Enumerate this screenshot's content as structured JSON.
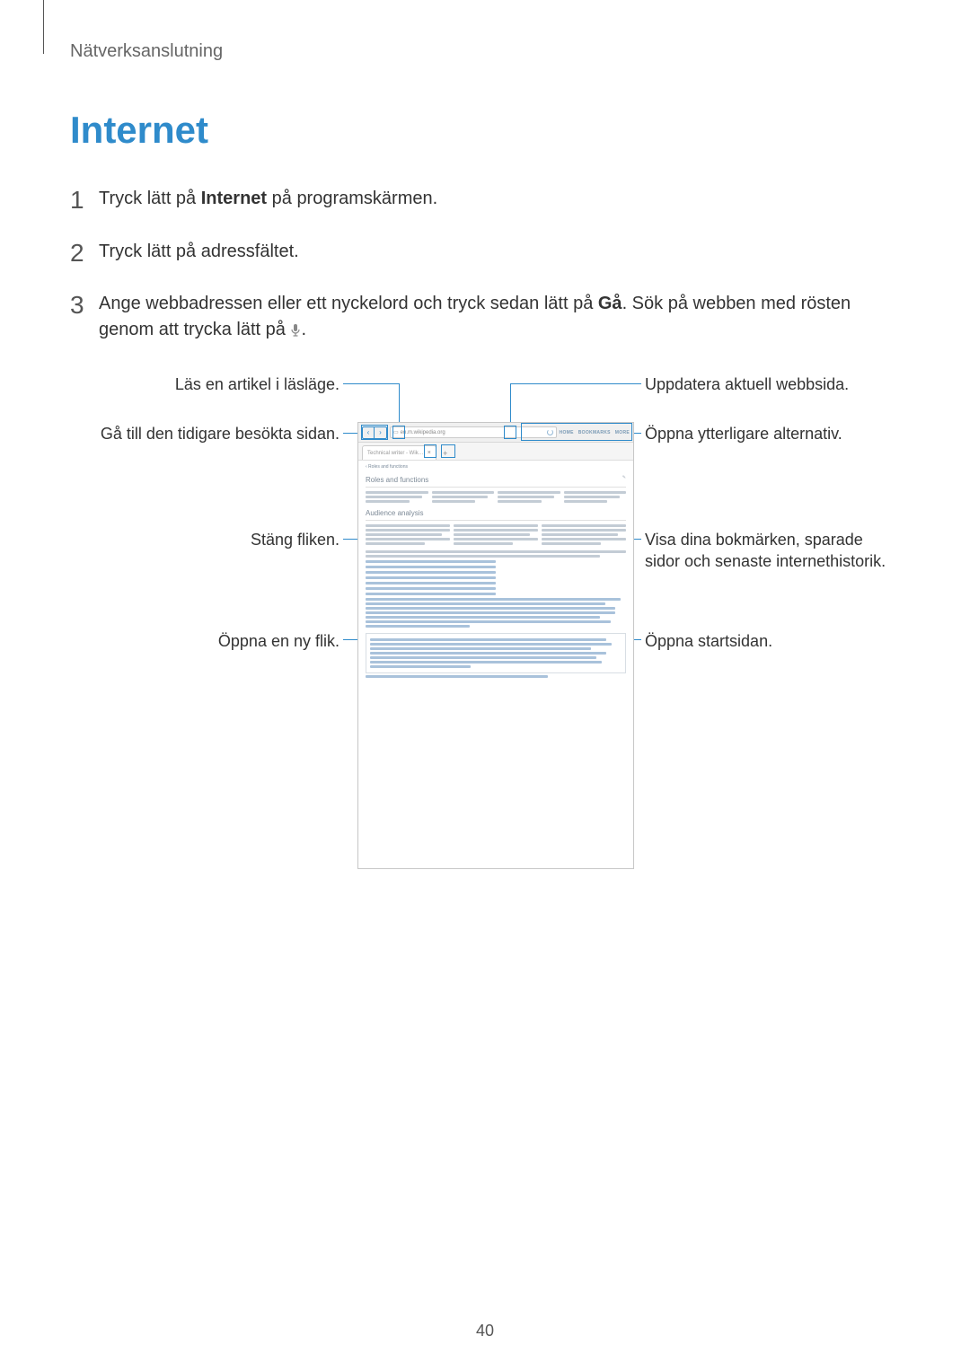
{
  "palette": {
    "accent": "#2f8bcb",
    "text": "#333333",
    "muted": "#666666"
  },
  "header": {
    "section": "Nätverksanslutning",
    "title": "Internet"
  },
  "steps": [
    {
      "num": "1",
      "html": "Tryck lätt på <b>Internet</b> på programskärmen."
    },
    {
      "num": "2",
      "html": "Tryck lätt på adressfältet."
    },
    {
      "num": "3",
      "html": "Ange webbadressen eller ett nyckelord och tryck sedan lätt på <b>Gå</b>. Sök på webben med rösten genom att trycka lätt på <svg class=\"mic-icon\" viewBox=\"0 0 12 16\"><rect x=\"4\" y=\"1\" width=\"4\" height=\"8\" rx=\"2\" fill=\"#888\"/><path d=\"M2 7 a4 4 0 0 0 8 0\" fill=\"none\" stroke=\"#888\" stroke-width=\"1.2\"/><line x1=\"6\" y1=\"11\" x2=\"6\" y2=\"14\" stroke=\"#888\" stroke-width=\"1.2\"/><line x1=\"3.5\" y1=\"14\" x2=\"8.5\" y2=\"14\" stroke=\"#888\" stroke-width=\"1.2\"/></svg>."
    }
  ],
  "labels": {
    "read": "Läs en artikel i läsläge.",
    "back": "Gå till den tidigare besökta sidan.",
    "close": "Stäng fliken.",
    "newtab": "Öppna en ny flik.",
    "refresh": "Uppdatera aktuell webbsida.",
    "more": "Öppna ytterligare alternativ.",
    "bookmark": "Visa dina bokmärken, sparade sidor och senaste internethistorik.",
    "home": "Öppna startsidan."
  },
  "browser": {
    "url_prefix_icon": "☐",
    "url": "en.m.wikipedia.org",
    "menu": [
      "HOME",
      "BOOKMARKS",
      "MORE"
    ],
    "tab_title": "Technical writer - Wik…",
    "article_title": "Roles and functions",
    "subheading": "Audience analysis",
    "search_hint": "‹  Roles and functions"
  },
  "page_number": "40"
}
